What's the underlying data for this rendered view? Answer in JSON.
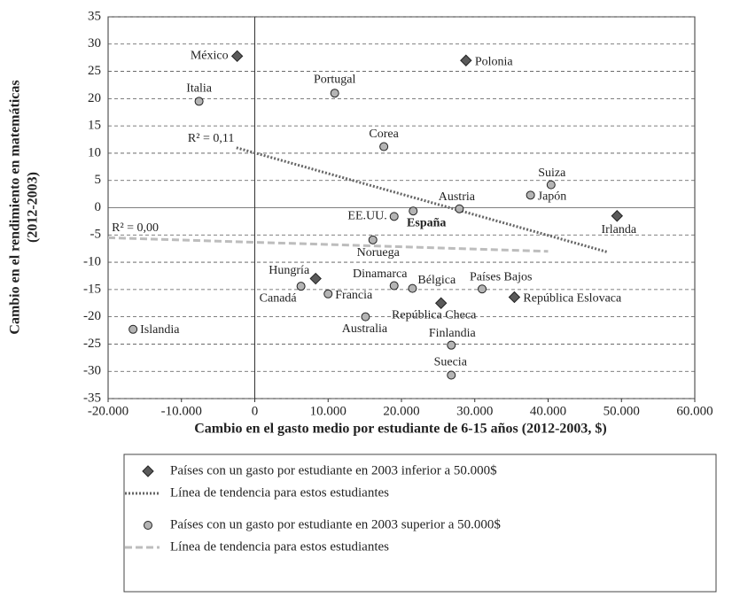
{
  "chart_data": {
    "type": "scatter",
    "xlabel": "Cambio en el gasto medio por estudiante de 6-15 años (2012-2003, $)",
    "ylabel": [
      "Cambio en el rendimiento en matemáticas",
      "(2012-2003)"
    ],
    "xlim": [
      -20000,
      60000
    ],
    "xticks": [
      {
        "value": -20000,
        "label": "-20.000"
      },
      {
        "value": -10000,
        "label": "-10.000"
      },
      0,
      {
        "value": 10000,
        "label": "10.000"
      },
      {
        "value": 20000,
        "label": "20.000"
      },
      {
        "value": 30000,
        "label": "30.000"
      },
      {
        "value": 40000,
        "label": "40.000"
      },
      {
        "value": 50000,
        "label": "50.000"
      },
      {
        "value": 60000,
        "label": "60.000"
      }
    ],
    "ylim": [
      -35,
      35
    ],
    "yticks": [
      35,
      30,
      25,
      20,
      15,
      10,
      5,
      0,
      -5,
      -10,
      -15,
      -20,
      -25,
      -30,
      -35
    ],
    "grid": true,
    "series": [
      {
        "name": "Países con un gasto por estudiante en 2003 inferior a 50.000$",
        "marker": "diamond",
        "color": "#5a5a5a",
        "labels": [
          "México",
          "Polonia",
          "Hungría",
          "República Checa",
          "República Eslovaca",
          "Irlanda"
        ],
        "x": [
          -2400,
          28800,
          8300,
          25400,
          35400,
          49400
        ],
        "values": [
          27.8,
          27,
          -13,
          -17.5,
          -16.4,
          -1.5
        ]
      },
      {
        "name": "Países con un gasto por estudiante en 2003 superior a 50.000$",
        "marker": "circle",
        "color": "#b4b4b4",
        "labels": [
          "Italia",
          "Portugal",
          "Corea",
          "Suiza",
          "Japón",
          "Austria",
          "EE.UU.",
          "España",
          "Noruega",
          "Canadá",
          "Francia",
          "Dinamarca",
          "Bélgica",
          "Países Bajos",
          "Australia",
          "Finlandia",
          "Suecia",
          "Islandia"
        ],
        "x": [
          -7600,
          10900,
          17600,
          40400,
          37600,
          27900,
          19000,
          21600,
          16100,
          6300,
          10000,
          19000,
          21500,
          31000,
          15100,
          26800,
          26800,
          -16600
        ],
        "values": [
          19.5,
          21,
          11.2,
          4.2,
          2.3,
          -0.2,
          -1.6,
          -0.6,
          -5.9,
          -14.4,
          -15.8,
          -14.3,
          -14.8,
          -14.9,
          -20,
          -25.2,
          -30.7,
          -22.3
        ]
      }
    ],
    "trendlines": [
      {
        "name": "Línea de tendencia para estos estudiantes",
        "style": "dotted",
        "color": "#666666",
        "annotation": "R² = 0,11",
        "x": [
          -2500,
          48000
        ],
        "values": [
          11,
          -8.1
        ]
      },
      {
        "name": "Línea de tendencia para estos estudiantes",
        "style": "dashed",
        "color": "#bdbdbd",
        "annotation": "R² = 0,00",
        "x": [
          -20000,
          40000
        ],
        "values": [
          -5.5,
          -8
        ]
      }
    ]
  }
}
